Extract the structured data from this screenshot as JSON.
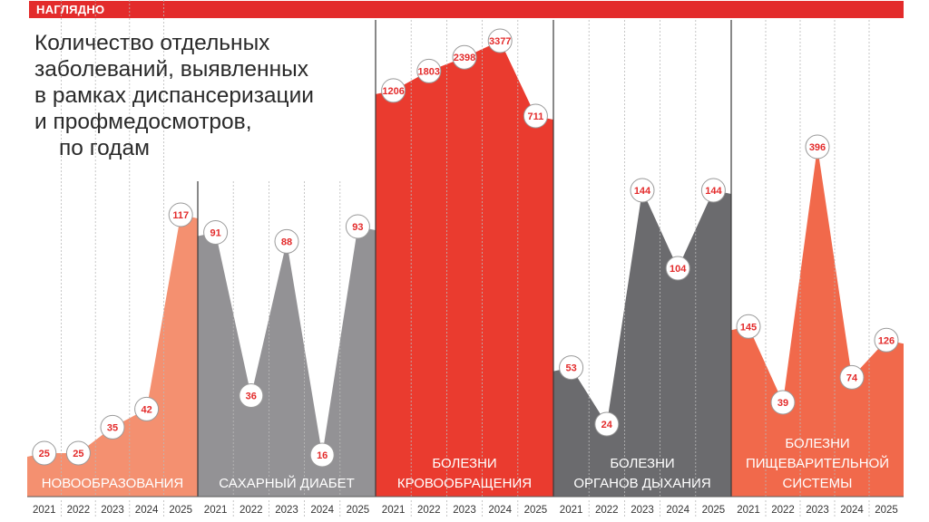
{
  "header": {
    "label": "НАГЛЯДНО"
  },
  "title_lines": [
    "Количество отдельных",
    "заболеваний, выявленных",
    "в рамках диспансеризации",
    "и профмедосмотров,",
    "по годам"
  ],
  "chart_data": [
    {
      "type": "area",
      "name": "НОВООБРАЗОВАНИЯ",
      "label_lines": [
        "НОВООБРАЗОВАНИЯ"
      ],
      "x": [
        "2021",
        "2022",
        "2023",
        "2024",
        "2025"
      ],
      "values": [
        25,
        25,
        35,
        42,
        117
      ],
      "ylim": [
        0,
        128
      ],
      "color": "#f49070",
      "label_color": "#ffffff"
    },
    {
      "type": "area",
      "name": "САХАРНЫЙ ДИАБЕТ",
      "label_lines": [
        "САХАРНЫЙ ДИАБЕТ"
      ],
      "x": [
        "2021",
        "2022",
        "2023",
        "2024",
        "2025"
      ],
      "values": [
        91,
        36,
        88,
        16,
        93
      ],
      "ylim": [
        0,
        136
      ],
      "color": "#939295",
      "label_color": "#ffffff"
    },
    {
      "type": "area",
      "name": "БОЛЕЗНИ КРОВООБРАЩЕНИЯ",
      "label_lines": [
        "БОЛЕЗНИ",
        "КРОВООБРАЩЕНИЯ"
      ],
      "x": [
        "2021",
        "2022",
        "2023",
        "2024",
        "2025"
      ],
      "values": [
        1206,
        1803,
        2398,
        3377,
        711
      ],
      "color": "#ea3b2f",
      "label_color": "#ffffff"
    },
    {
      "type": "area",
      "name": "БОЛЕЗНИ ОРГАНОВ ДЫХАНИЯ",
      "label_lines": [
        "БОЛЕЗНИ",
        "ОРГАНОВ ДЫХАНИЯ"
      ],
      "x": [
        "2021",
        "2022",
        "2023",
        "2024",
        "2025"
      ],
      "values": [
        53,
        24,
        144,
        104,
        144
      ],
      "color": "#6b6b6e",
      "label_color": "#ffffff"
    },
    {
      "type": "area",
      "name": "БОЛЕЗНИ ПИЩЕВАРИТЕЛЬНОЙ СИСТЕМЫ",
      "label_lines": [
        "БОЛЕЗНИ",
        "ПИЩЕВАРИТЕЛЬНОЙ",
        "СИСТЕМЫ"
      ],
      "x": [
        "2021",
        "2022",
        "2023",
        "2024",
        "2025"
      ],
      "values": [
        145,
        39,
        396,
        74,
        126
      ],
      "color": "#f1694b",
      "label_color": "#ffffff"
    }
  ]
}
